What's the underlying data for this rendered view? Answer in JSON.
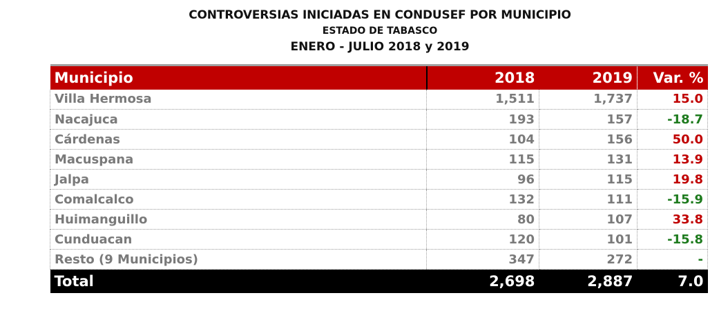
{
  "title": {
    "line1": "CONTROVERSIAS INICIADAS EN CONDUSEF POR MUNICIPIO",
    "line2": "ESTADO DE TABASCO",
    "line3": "ENERO - JULIO 2018 y 2019"
  },
  "table": {
    "headers": [
      "Municipio",
      "2018",
      "2019",
      "Var. %"
    ],
    "rows": [
      {
        "municipio": "Villa Hermosa",
        "y2018": "1,511",
        "y2019": "1,737",
        "var": "15.0",
        "trend": "up"
      },
      {
        "municipio": "Nacajuca",
        "y2018": "193",
        "y2019": "157",
        "var": "-18.7",
        "trend": "down"
      },
      {
        "municipio": "Cárdenas",
        "y2018": "104",
        "y2019": "156",
        "var": "50.0",
        "trend": "up"
      },
      {
        "municipio": "Macuspana",
        "y2018": "115",
        "y2019": "131",
        "var": "13.9",
        "trend": "up"
      },
      {
        "municipio": "Jalpa",
        "y2018": "96",
        "y2019": "115",
        "var": "19.8",
        "trend": "up"
      },
      {
        "municipio": "Comalcalco",
        "y2018": "132",
        "y2019": "111",
        "var": "-15.9",
        "trend": "down"
      },
      {
        "municipio": "Huimanguillo",
        "y2018": "80",
        "y2019": "107",
        "var": "33.8",
        "trend": "up"
      },
      {
        "municipio": "Cunduacan",
        "y2018": "120",
        "y2019": "101",
        "var": "-15.8",
        "trend": "down"
      },
      {
        "municipio": "Resto (9 Municipios)",
        "y2018": "347",
        "y2019": "272",
        "var": "-",
        "trend": "down"
      }
    ],
    "total": {
      "label": "Total",
      "y2018": "2,698",
      "y2019": "2,887",
      "var": "7.0"
    }
  },
  "colors": {
    "header_bg": "#c00000",
    "total_bg": "#000000",
    "positive": "#c00000",
    "negative": "#1e7b1e",
    "cell_text": "#7a7a7a"
  }
}
